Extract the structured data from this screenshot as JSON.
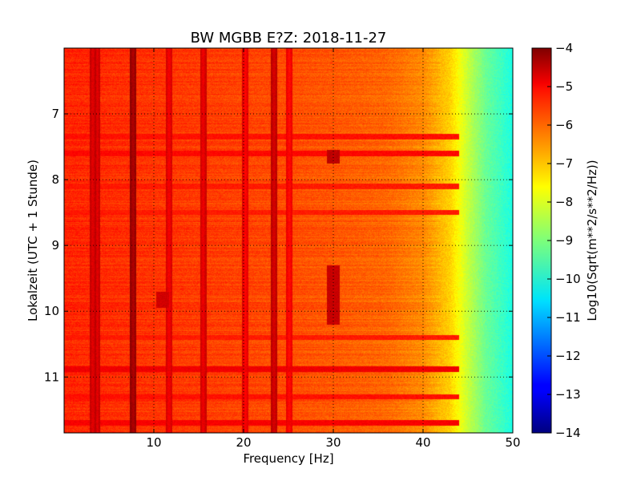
{
  "chart_data": {
    "type": "heatmap",
    "title": "BW MGBB E?Z: 2018-11-27",
    "xlabel": "Frequency [Hz]",
    "ylabel": "Lokalzeit (UTC + 1 Stunde)",
    "colorbar_label": "Log10(Sqrt(m**2/s**2/Hz))",
    "colormap": "jet",
    "grid": true,
    "grid_style": "dotted",
    "xlim": [
      0,
      50
    ],
    "ylim": [
      6.0,
      11.85
    ],
    "y_inverted": true,
    "clim": [
      -14,
      -4
    ],
    "x_ticks": [
      {
        "value": 10,
        "label": "10"
      },
      {
        "value": 20,
        "label": "20"
      },
      {
        "value": 30,
        "label": "30"
      },
      {
        "value": 40,
        "label": "40"
      },
      {
        "value": 50,
        "label": "50"
      }
    ],
    "y_ticks": [
      {
        "value": 7,
        "label": "7"
      },
      {
        "value": 8,
        "label": "8"
      },
      {
        "value": 9,
        "label": "9"
      },
      {
        "value": 10,
        "label": "10"
      },
      {
        "value": 11,
        "label": "11"
      }
    ],
    "colorbar_ticks": [
      {
        "value": -4,
        "label": "−4"
      },
      {
        "value": -5,
        "label": "−5"
      },
      {
        "value": -6,
        "label": "−6"
      },
      {
        "value": -7,
        "label": "−7"
      },
      {
        "value": -8,
        "label": "−8"
      },
      {
        "value": -9,
        "label": "−9"
      },
      {
        "value": -10,
        "label": "−10"
      },
      {
        "value": -11,
        "label": "−11"
      },
      {
        "value": -12,
        "label": "−12"
      },
      {
        "value": -13,
        "label": "−13"
      },
      {
        "value": -14,
        "label": "−14"
      }
    ],
    "background_profile": {
      "frequency_hz": [
        0,
        20,
        30,
        36,
        40,
        43,
        45,
        47,
        50
      ],
      "value": [
        -5.6,
        -5.9,
        -6.1,
        -6.25,
        -6.6,
        -7.3,
        -8.3,
        -9.2,
        -10.0
      ]
    },
    "spectral_lines": [
      {
        "frequency_hz": 3.2,
        "value": -5.0
      },
      {
        "frequency_hz": 3.7,
        "value": -5.0
      },
      {
        "frequency_hz": 7.7,
        "value": -4.5
      },
      {
        "frequency_hz": 11.7,
        "value": -5.2
      },
      {
        "frequency_hz": 15.5,
        "value": -5.1
      },
      {
        "frequency_hz": 20.2,
        "value": -5.3
      },
      {
        "frequency_hz": 23.4,
        "value": -4.9
      },
      {
        "frequency_hz": 25.1,
        "value": -5.4
      }
    ],
    "time_bands": [
      {
        "time": 7.35,
        "value": -5.4
      },
      {
        "time": 7.6,
        "value": -5.3
      },
      {
        "time": 8.1,
        "value": -5.5
      },
      {
        "time": 8.5,
        "value": -5.5
      },
      {
        "time": 10.4,
        "value": -5.5
      },
      {
        "time": 10.88,
        "value": -5.1
      },
      {
        "time": 11.3,
        "value": -5.4
      },
      {
        "time": 11.7,
        "value": -5.2
      }
    ],
    "hot_spots": [
      {
        "frequency_hz": 30.0,
        "time_range": [
          7.55,
          7.75
        ],
        "value": -4.6
      },
      {
        "frequency_hz": 30.0,
        "time_range": [
          9.3,
          10.2
        ],
        "value": -4.7
      },
      {
        "frequency_hz": 11.0,
        "time_range": [
          9.7,
          9.95
        ],
        "value": -4.8
      }
    ]
  }
}
